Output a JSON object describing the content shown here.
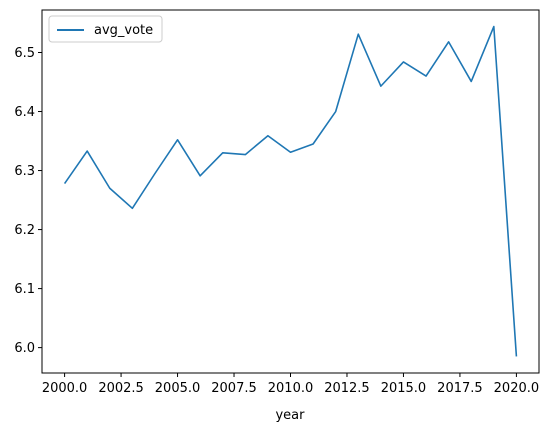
{
  "chart_data": {
    "type": "line",
    "xlabel": "year",
    "ylabel": "",
    "title": "",
    "xlim": [
      1999.0,
      2021.0
    ],
    "ylim": [
      5.957,
      6.572
    ],
    "x_ticks": [
      2000.0,
      2002.5,
      2005.0,
      2007.5,
      2010.0,
      2012.5,
      2015.0,
      2017.5,
      2020.0
    ],
    "x_tick_labels": [
      "2000.0",
      "2002.5",
      "2005.0",
      "2007.5",
      "2010.0",
      "2012.5",
      "2015.0",
      "2017.5",
      "2020.0"
    ],
    "y_ticks": [
      6.0,
      6.1,
      6.2,
      6.3,
      6.4,
      6.5
    ],
    "y_tick_labels": [
      "6.0",
      "6.1",
      "6.2",
      "6.3",
      "6.4",
      "6.5"
    ],
    "grid": false,
    "legend_position": "upper-left",
    "series": [
      {
        "name": "avg_vote",
        "color": "#1f77b4",
        "x": [
          2000,
          2001,
          2002,
          2003,
          2004,
          2005,
          2006,
          2007,
          2008,
          2009,
          2010,
          2011,
          2012,
          2013,
          2014,
          2015,
          2016,
          2017,
          2018,
          2019,
          2020
        ],
        "values": [
          6.278,
          6.333,
          6.27,
          6.236,
          6.295,
          6.352,
          6.291,
          6.33,
          6.327,
          6.359,
          6.331,
          6.345,
          6.4,
          6.531,
          6.443,
          6.484,
          6.46,
          6.518,
          6.451,
          6.544,
          5.985
        ]
      }
    ]
  }
}
